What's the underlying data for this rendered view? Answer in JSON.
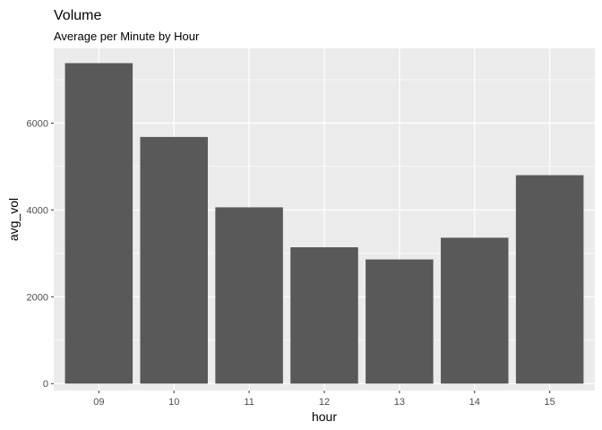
{
  "chart_data": {
    "type": "bar",
    "title": "Volume",
    "subtitle": "Average per Minute by Hour",
    "xlabel": "hour",
    "ylabel": "avg_vol",
    "categories": [
      "09",
      "10",
      "11",
      "12",
      "13",
      "14",
      "15"
    ],
    "values": [
      7380,
      5680,
      4060,
      3140,
      2860,
      3360,
      4800
    ],
    "ylim": [
      -160,
      7720
    ],
    "yticks": [
      0,
      2000,
      4000,
      6000
    ],
    "yticks_labels": [
      "0",
      "2000",
      "4000",
      "6000"
    ],
    "grid": true,
    "legend": "none",
    "colors": {
      "panel": "#EBEBEB",
      "grid_major": "#FFFFFF",
      "bar": "#595959",
      "text": "#000000",
      "tick_text": "#4D4D4D",
      "tick": "#333333"
    }
  }
}
